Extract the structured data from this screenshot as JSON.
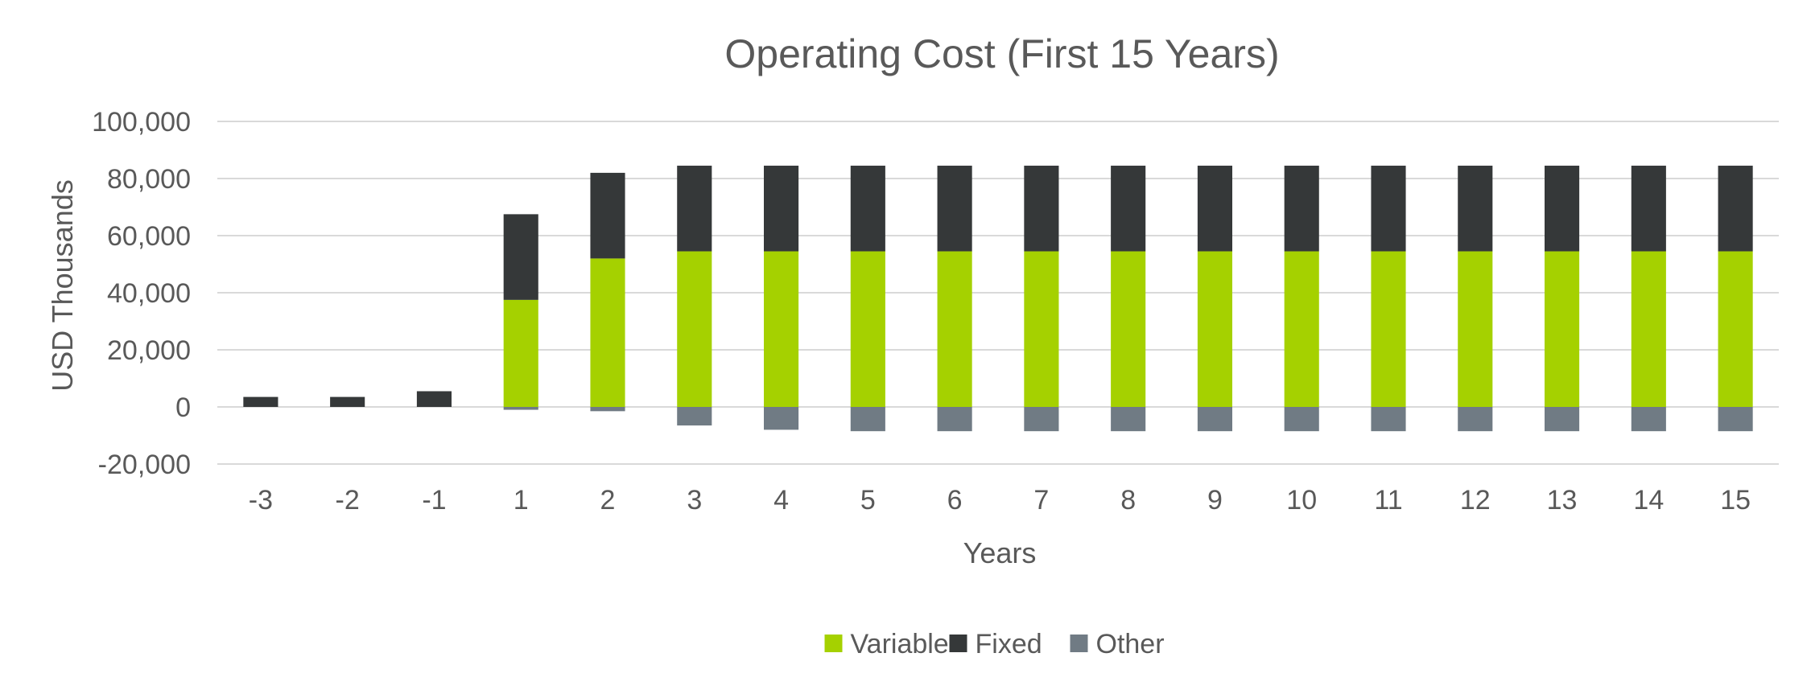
{
  "chart_data": {
    "type": "bar",
    "stacked": true,
    "title": "Operating Cost (First 15 Years)",
    "xlabel": "Years",
    "ylabel": "USD Thousands",
    "categories": [
      "-3",
      "-2",
      "-1",
      "1",
      "2",
      "3",
      "4",
      "5",
      "6",
      "7",
      "8",
      "9",
      "10",
      "11",
      "12",
      "13",
      "14",
      "15"
    ],
    "series": [
      {
        "name": "Variable",
        "color": "#a5d100",
        "values": [
          0,
          0,
          0,
          37500,
          52000,
          54500,
          54500,
          54500,
          54500,
          54500,
          54500,
          54500,
          54500,
          54500,
          54500,
          54500,
          54500,
          54500
        ]
      },
      {
        "name": "Fixed",
        "color": "#353839",
        "values": [
          3500,
          3500,
          5500,
          30000,
          30000,
          30000,
          30000,
          30000,
          30000,
          30000,
          30000,
          30000,
          30000,
          30000,
          30000,
          30000,
          30000,
          30000
        ]
      },
      {
        "name": "Other",
        "color": "#707b84",
        "values": [
          0,
          0,
          0,
          -1000,
          -1500,
          -6500,
          -8000,
          -8500,
          -8500,
          -8500,
          -8500,
          -8500,
          -8500,
          -8500,
          -8500,
          -8500,
          -8500,
          -8500
        ]
      }
    ],
    "ylim": [
      -20000,
      100000
    ],
    "yticks": [
      -20000,
      0,
      20000,
      40000,
      60000,
      80000,
      100000
    ],
    "ytick_labels": [
      "-20,000",
      "0",
      "20,000",
      "40,000",
      "60,000",
      "80,000",
      "100,000"
    ],
    "grid": true,
    "grid_color": "#d9d9d9",
    "legend_position": "bottom"
  }
}
